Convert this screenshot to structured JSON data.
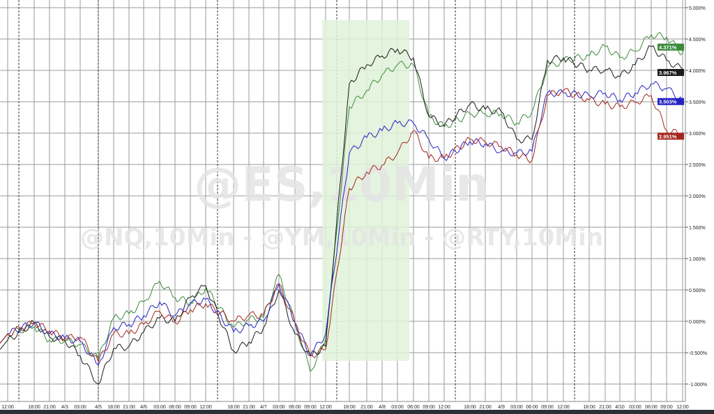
{
  "watermark": {
    "main": "@ES,10Min",
    "sub": "@NQ,10Min - @YM,10Min - @RTY,10Min"
  },
  "chart_data": {
    "type": "line",
    "title": "",
    "xlabel": "",
    "ylabel": "",
    "ylim": [
      -1.15,
      5.05
    ],
    "y_ticks": [
      5.0,
      4.5,
      4.0,
      3.5,
      3.0,
      2.5,
      2.0,
      1.5,
      1.0,
      0.5,
      0.0,
      -0.5,
      -1.0
    ],
    "y_tick_labels": [
      "5.000%",
      "4.500%",
      "4.000%",
      "3.500%",
      "3.000%",
      "2.500%",
      "2.000%",
      "1.500%",
      "1.000%",
      "0.500%",
      "0.000%",
      "-0.500%",
      "-1.000%"
    ],
    "y_axis_position": "right",
    "grid": true,
    "x": [
      "12:00",
      "18:00",
      "21:00",
      "4/3",
      "03:00",
      "4/5",
      "18:00",
      "21:00",
      "4/6",
      "03:00",
      "06:00",
      "09:00",
      "12:00",
      "18:00",
      "21:00",
      "4/7",
      "03:00",
      "06:00",
      "09:00",
      "12:00",
      "18:00",
      "21:00",
      "4/8",
      "03:00",
      "06:00",
      "09:00",
      "12:00",
      "18:00",
      "21:00",
      "4/9",
      "03:00",
      "06:00",
      "09:00",
      "12:00",
      "18:00",
      "21:00",
      "4/10",
      "03:00",
      "06:00",
      "09:00",
      "12:00"
    ],
    "highlight_color": "#dff2d8",
    "series": [
      {
        "color": "#3c8a3c",
        "last_label": "4.371%",
        "last": 4.371,
        "values": [
          -0.2,
          -0.08,
          -0.3,
          -0.3,
          -0.37,
          -0.6,
          0.05,
          0.12,
          0.31,
          0.64,
          0.38,
          0.3,
          0.53,
          -0.1,
          0.03,
          0.06,
          0.75,
          -0.02,
          -0.8,
          -0.3,
          3.42,
          3.68,
          3.93,
          4.09,
          4.09,
          3.27,
          3.1,
          3.31,
          3.31,
          3.31,
          3.16,
          3.34,
          4.04,
          4.16,
          4.23,
          4.38,
          4.2,
          4.31,
          4.57,
          4.53,
          4.27
        ]
      },
      {
        "color": "#1a1a1a",
        "last_label": "3.967%",
        "last": 3.967,
        "values": [
          -0.3,
          -0.02,
          -0.25,
          -0.3,
          -0.55,
          -1.0,
          -0.43,
          -0.4,
          -0.17,
          0.05,
          0.0,
          0.38,
          0.57,
          -0.47,
          -0.33,
          -0.1,
          0.5,
          -0.2,
          -0.55,
          -0.4,
          3.79,
          4.09,
          4.23,
          4.34,
          4.2,
          3.27,
          3.12,
          3.46,
          3.38,
          3.34,
          2.9,
          2.9,
          4.16,
          4.2,
          4.01,
          4.01,
          3.9,
          4.09,
          4.38,
          4.16,
          4.01
        ]
      },
      {
        "color": "#2323c4",
        "last_label": "3.503%",
        "last": 3.503,
        "values": [
          -0.2,
          -0.02,
          -0.2,
          -0.27,
          -0.32,
          -0.7,
          -0.1,
          -0.05,
          0.09,
          0.31,
          0.09,
          0.27,
          0.35,
          -0.17,
          -0.07,
          0.0,
          0.6,
          -0.02,
          -0.55,
          -0.2,
          2.68,
          2.93,
          3.04,
          3.16,
          3.16,
          2.9,
          2.6,
          2.87,
          2.83,
          2.71,
          2.68,
          2.71,
          3.64,
          3.64,
          3.6,
          3.64,
          3.53,
          3.64,
          3.79,
          3.71,
          3.53
        ]
      },
      {
        "color": "#a3261c",
        "last_label": "2.951%",
        "last": 2.951,
        "values": [
          -0.2,
          -0.02,
          -0.15,
          -0.27,
          -0.25,
          -0.65,
          -0.2,
          -0.2,
          -0.05,
          0.16,
          -0.02,
          0.19,
          0.28,
          0.0,
          0.1,
          0.1,
          0.6,
          -0.02,
          -0.55,
          -0.45,
          2.12,
          2.38,
          2.49,
          2.68,
          3.04,
          2.6,
          2.6,
          2.9,
          2.86,
          2.79,
          2.66,
          2.57,
          3.6,
          3.68,
          3.53,
          3.46,
          3.42,
          3.49,
          3.6,
          3.04,
          2.98
        ]
      }
    ]
  }
}
